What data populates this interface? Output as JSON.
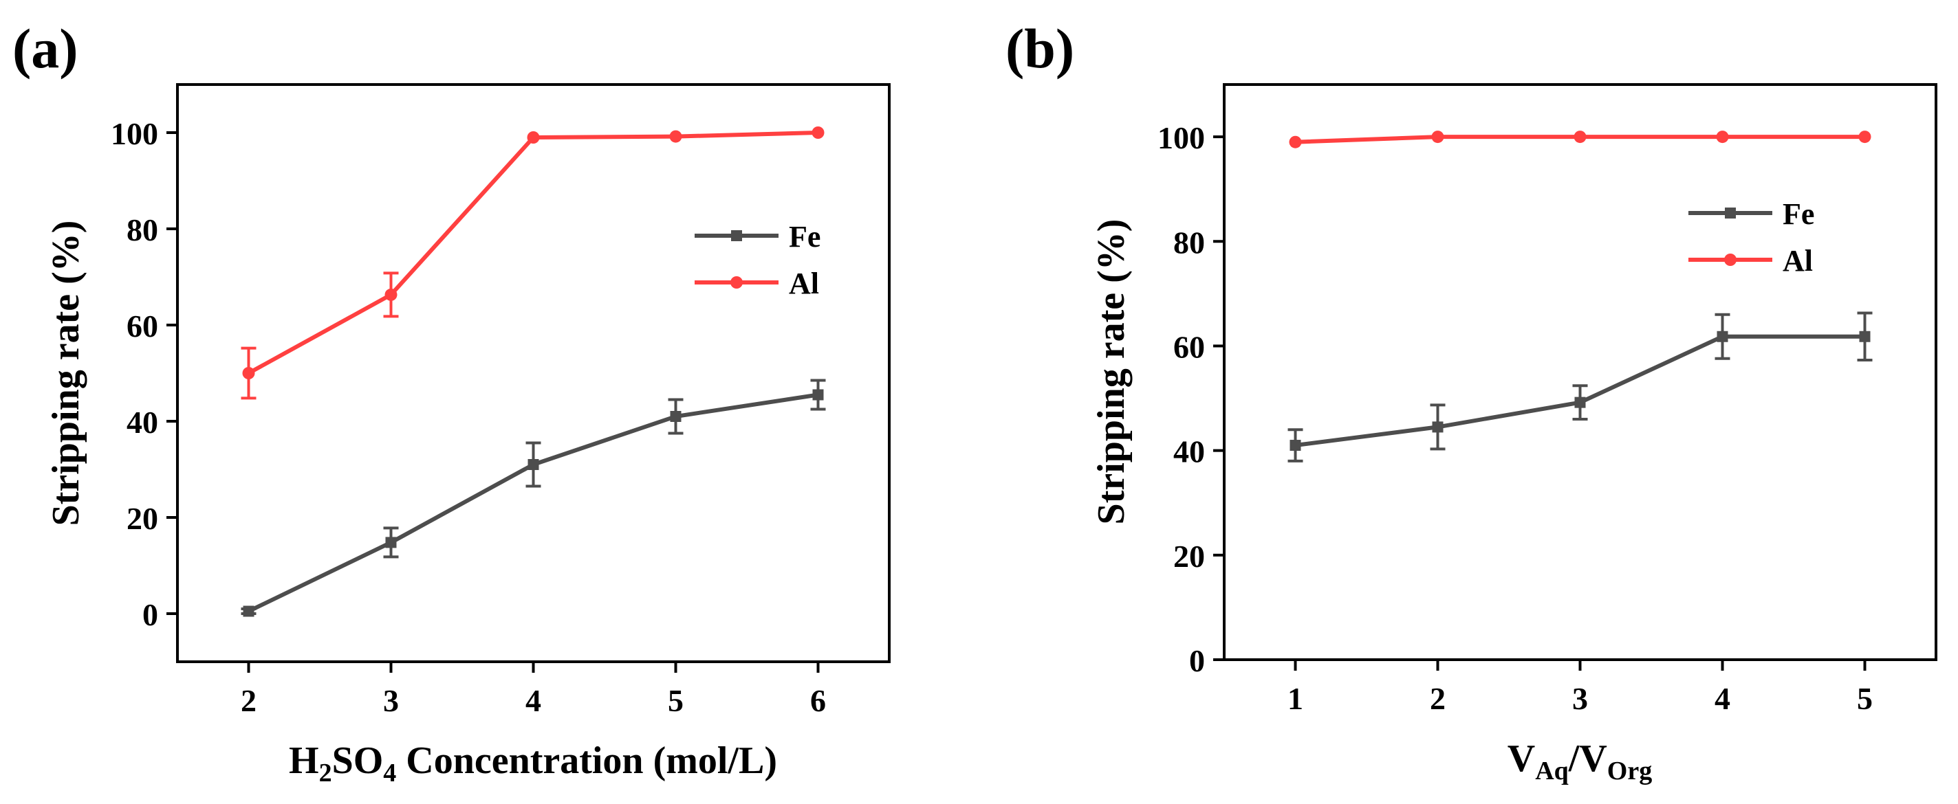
{
  "colors": {
    "fe": "#4d4d4d",
    "al": "#ff4040",
    "axis": "#000000"
  },
  "chart_data": [
    {
      "panel_label": "(a)",
      "type": "line",
      "x": [
        2,
        3,
        4,
        5,
        6
      ],
      "xlim": [
        1.5,
        6.5
      ],
      "ylim": [
        -10,
        110
      ],
      "yticks": [
        0,
        20,
        40,
        60,
        80,
        100
      ],
      "xlabel": {
        "main": "H",
        "sub1": "2",
        "mid": "SO",
        "sub2": "4",
        "tail": " Concentration (mol/L)"
      },
      "ylabel": "Stripping rate (%)",
      "legend": "top-right",
      "series": [
        {
          "name": "Fe",
          "color": "#4d4d4d",
          "marker": "square",
          "values": [
            0.5,
            14.8,
            31.0,
            41.0,
            45.5
          ],
          "errors": [
            0.5,
            3.0,
            4.5,
            3.5,
            3.0
          ]
        },
        {
          "name": "Al",
          "color": "#ff4040",
          "marker": "circle",
          "values": [
            50.0,
            66.3,
            99.0,
            99.2,
            100.0
          ],
          "errors": [
            5.2,
            4.5,
            0.0,
            0.0,
            0.0
          ]
        }
      ]
    },
    {
      "panel_label": "(b)",
      "type": "line",
      "x": [
        1,
        2,
        3,
        4,
        5
      ],
      "xlim": [
        0.5,
        5.5
      ],
      "ylim": [
        0,
        110
      ],
      "yticks": [
        0,
        20,
        40,
        60,
        80,
        100
      ],
      "xlabel": {
        "main": "V",
        "sub1": "Aq",
        "mid": "/V",
        "sub2": "Org",
        "tail": ""
      },
      "ylabel": "Stripping rate (%)",
      "legend": "top-right",
      "series": [
        {
          "name": "Fe",
          "color": "#4d4d4d",
          "marker": "square",
          "values": [
            41.0,
            44.5,
            49.2,
            61.8,
            61.8
          ],
          "errors": [
            3.0,
            4.2,
            3.2,
            4.2,
            4.5
          ]
        },
        {
          "name": "Al",
          "color": "#ff4040",
          "marker": "circle",
          "values": [
            99.0,
            100.0,
            100.0,
            100.0,
            100.0
          ],
          "errors": [
            0.0,
            0.0,
            0.0,
            0.0,
            0.0
          ]
        }
      ]
    }
  ]
}
